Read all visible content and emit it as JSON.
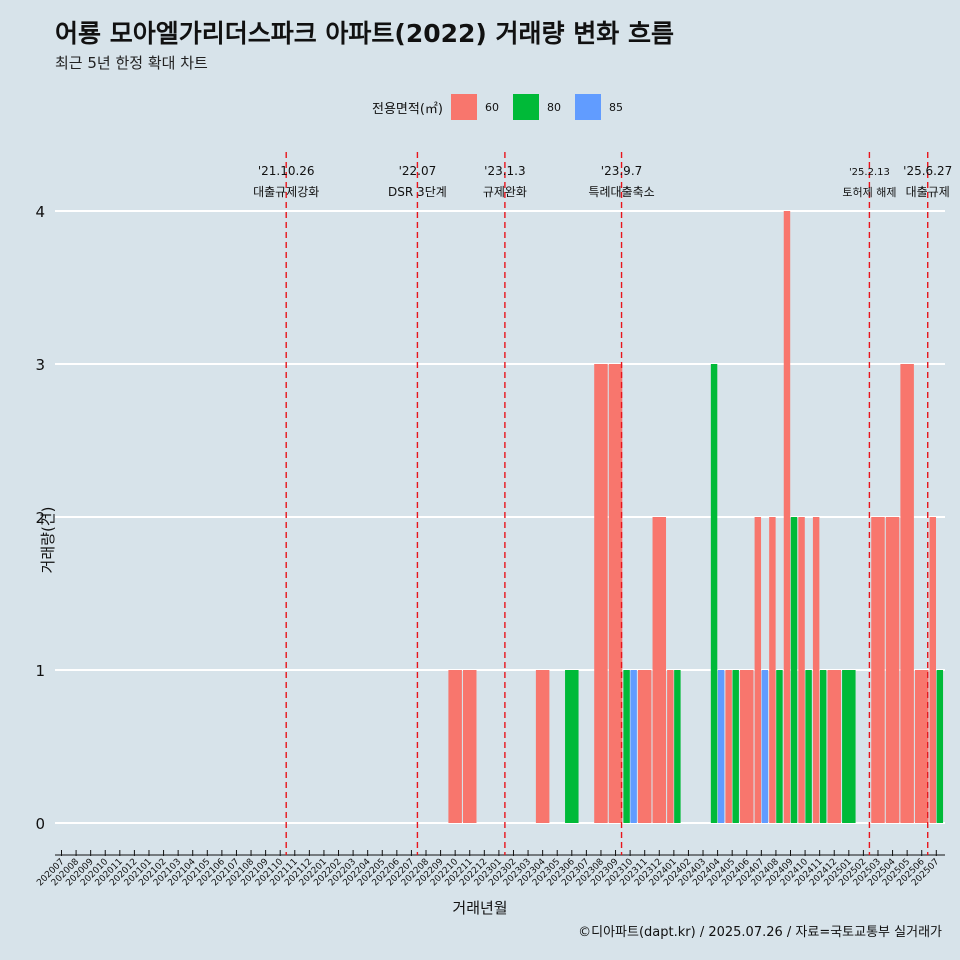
{
  "title": "어룡 모아엘가리더스파크 아파트(2022) 거래량 변화 흐름",
  "subtitle": "최근 5년 한정 확대 차트",
  "caption": "©디아파트(dapt.kr) / 2025.07.26 / 자료=국토교통부 실거래가",
  "legend": {
    "title": "전용면적(㎡)",
    "items": [
      {
        "label": "60",
        "color": "#f8766d"
      },
      {
        "label": "80",
        "color": "#00ba38"
      },
      {
        "label": "85",
        "color": "#619cff"
      }
    ]
  },
  "chart_data": {
    "type": "bar",
    "xlabel": "거래년월",
    "ylabel": "거래량(건)",
    "ylim": [
      0,
      4
    ],
    "yticks": [
      0,
      1,
      2,
      3,
      4
    ],
    "categories": [
      "202007",
      "202008",
      "202009",
      "202010",
      "202011",
      "202012",
      "202101",
      "202102",
      "202103",
      "202104",
      "202105",
      "202106",
      "202107",
      "202108",
      "202109",
      "202110",
      "202111",
      "202112",
      "202201",
      "202202",
      "202203",
      "202204",
      "202205",
      "202206",
      "202207",
      "202208",
      "202209",
      "202210",
      "202211",
      "202212",
      "202301",
      "202302",
      "202303",
      "202304",
      "202305",
      "202306",
      "202307",
      "202308",
      "202309",
      "202310",
      "202311",
      "202312",
      "202401",
      "202402",
      "202403",
      "202404",
      "202405",
      "202406",
      "202407",
      "202408",
      "202409",
      "202410",
      "202411",
      "202412",
      "202501",
      "202502",
      "202503",
      "202504",
      "202505",
      "202506",
      "202507"
    ],
    "series": [
      {
        "name": "60",
        "color": "#f8766d",
        "values": [
          0,
          0,
          0,
          0,
          0,
          0,
          0,
          0,
          0,
          0,
          0,
          0,
          0,
          0,
          0,
          0,
          0,
          0,
          0,
          0,
          0,
          0,
          0,
          0,
          0,
          0,
          0,
          1,
          1,
          0,
          0,
          0,
          0,
          1,
          0,
          0,
          0,
          3,
          3,
          0,
          1,
          2,
          1,
          0,
          0,
          0,
          1,
          1,
          2,
          2,
          4,
          2,
          2,
          1,
          0,
          0,
          2,
          2,
          3,
          1,
          2
        ]
      },
      {
        "name": "80",
        "color": "#00ba38",
        "values": [
          0,
          0,
          0,
          0,
          0,
          0,
          0,
          0,
          0,
          0,
          0,
          0,
          0,
          0,
          0,
          0,
          0,
          0,
          0,
          0,
          0,
          0,
          0,
          0,
          0,
          0,
          0,
          0,
          0,
          0,
          0,
          0,
          0,
          0,
          0,
          1,
          0,
          0,
          0,
          1,
          0,
          0,
          1,
          0,
          0,
          3,
          1,
          0,
          0,
          1,
          2,
          1,
          1,
          0,
          1,
          0,
          0,
          0,
          0,
          0,
          1
        ]
      },
      {
        "name": "85",
        "color": "#619cff",
        "values": [
          0,
          0,
          0,
          0,
          0,
          0,
          0,
          0,
          0,
          0,
          0,
          0,
          0,
          0,
          0,
          0,
          0,
          0,
          0,
          0,
          0,
          0,
          0,
          0,
          0,
          0,
          0,
          0,
          0,
          0,
          0,
          0,
          0,
          0,
          0,
          0,
          0,
          0,
          0,
          1,
          0,
          0,
          0,
          0,
          0,
          1,
          0,
          0,
          1,
          0,
          0,
          0,
          0,
          0,
          0,
          0,
          0,
          0,
          0,
          0,
          0
        ]
      }
    ],
    "events": [
      {
        "date": "'21.10.26",
        "label": "대출규제강화",
        "at": "202110"
      },
      {
        "date": "'22.07",
        "label": "DSR 3단계",
        "at": "202207"
      },
      {
        "date": "'23.1.3",
        "label": "규제완화",
        "at": "202301"
      },
      {
        "date": "'23.9.7",
        "label": "특례대출축소",
        "at": "202309"
      },
      {
        "date": "'25.2.13",
        "label": "토허제 해제",
        "at": "202502"
      },
      {
        "date": "'25.6.27",
        "label": "대출규제",
        "at": "202506"
      }
    ]
  }
}
